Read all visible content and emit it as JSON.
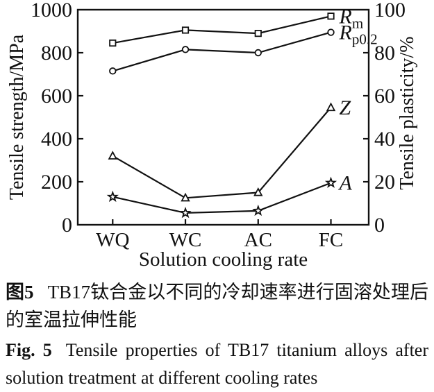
{
  "colors": {
    "ink": "#111111",
    "background": "#ffffff"
  },
  "chart_data": {
    "type": "line",
    "categories": [
      "WQ",
      "WC",
      "AC",
      "FC"
    ],
    "xlabel": "Solution cooling rate",
    "ylabel_left": "Tensile strength/MPa",
    "ylabel_right": "Tensile plasticity/%",
    "ylim_left": [
      0,
      1000
    ],
    "ylim_right": [
      0,
      100
    ],
    "yticks_left": [
      0,
      200,
      400,
      600,
      800,
      1000
    ],
    "yticks_right": [
      0,
      20,
      40,
      60,
      80,
      100
    ],
    "grid": false,
    "legend_position": "right-of-last-point",
    "series": [
      {
        "name": "Rm",
        "label_main": "R",
        "label_sub": "m",
        "marker": "square",
        "axis": "left",
        "unit": "MPa",
        "values": [
          845,
          905,
          890,
          970
        ]
      },
      {
        "name": "Rp0.2",
        "label_main": "R",
        "label_sub": "p0.2",
        "marker": "circle",
        "axis": "left",
        "unit": "MPa",
        "values": [
          715,
          815,
          800,
          895
        ]
      },
      {
        "name": "Z",
        "label_main": "Z",
        "label_sub": "",
        "marker": "triangle",
        "axis": "right",
        "unit": "%",
        "values": [
          32,
          12.5,
          15,
          54.5
        ]
      },
      {
        "name": "A",
        "label_main": "A",
        "label_sub": "",
        "marker": "star",
        "axis": "right",
        "unit": "%",
        "values": [
          13,
          5.5,
          6.5,
          19.5
        ]
      }
    ]
  },
  "caption": {
    "zh_label": "图5",
    "zh_text": "TB17钛合金以不同的冷却速率进行固溶处理后的室温拉伸性能",
    "en_label": "Fig. 5",
    "en_text": "Tensile properties of TB17 titanium alloys after solution treatment at different cooling rates"
  }
}
